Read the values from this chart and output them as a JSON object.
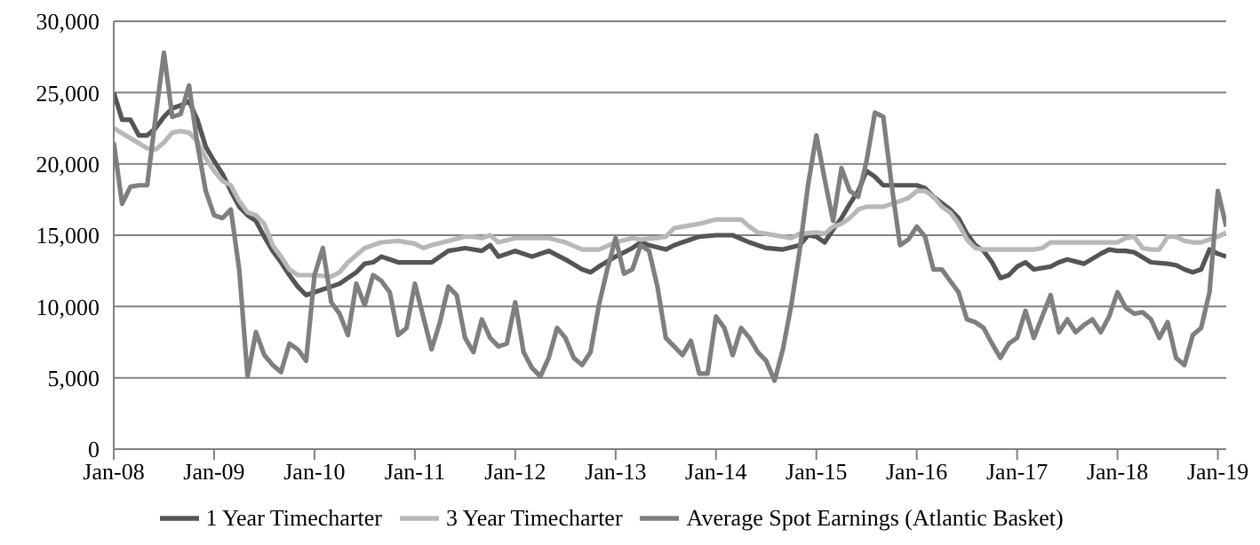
{
  "chart_data": {
    "type": "line",
    "xlim": [
      "2008-01",
      "2019-02"
    ],
    "ylim": [
      0,
      30000
    ],
    "yticks": [
      0,
      {
        "value": 5000,
        "label": "5,000"
      },
      {
        "value": 10000,
        "label": "10,000"
      },
      {
        "value": 15000,
        "label": "15,000"
      },
      {
        "value": 20000,
        "label": "20,000"
      },
      {
        "value": 25000,
        "label": "25,000"
      },
      {
        "value": 30000,
        "label": "30,000"
      }
    ],
    "xticks": [
      {
        "value": "2008-01",
        "label": "Jan-08"
      },
      {
        "value": "2009-01",
        "label": "Jan-09"
      },
      {
        "value": "2010-01",
        "label": "Jan-10"
      },
      {
        "value": "2011-01",
        "label": "Jan-11"
      },
      {
        "value": "2012-01",
        "label": "Jan-12"
      },
      {
        "value": "2013-01",
        "label": "Jan-13"
      },
      {
        "value": "2014-01",
        "label": "Jan-14"
      },
      {
        "value": "2015-01",
        "label": "Jan-15"
      },
      {
        "value": "2016-01",
        "label": "Jan-16"
      },
      {
        "value": "2017-01",
        "label": "Jan-17"
      },
      {
        "value": "2018-01",
        "label": "Jan-18"
      },
      {
        "value": "2019-01",
        "label": "Jan-19"
      }
    ],
    "grid": "y",
    "legend": "bottom",
    "marker": "none",
    "line_style": "solid",
    "series": [
      {
        "name": "1 Year Timecharter",
        "color": "#555555",
        "x": [
          "2008-01",
          "2008-02",
          "2008-03",
          "2008-04",
          "2008-05",
          "2008-06",
          "2008-07",
          "2008-08",
          "2008-09",
          "2008-10",
          "2008-11",
          "2008-12",
          "2009-01",
          "2009-02",
          "2009-03",
          "2009-04",
          "2009-05",
          "2009-06",
          "2009-07",
          "2009-08",
          "2009-09",
          "2009-10",
          "2009-11",
          "2009-12",
          "2010-01",
          "2010-02",
          "2010-03",
          "2010-04",
          "2010-05",
          "2010-06",
          "2010-07",
          "2010-08",
          "2010-09",
          "2010-10",
          "2010-11",
          "2011-01",
          "2011-03",
          "2011-05",
          "2011-07",
          "2011-09",
          "2011-10",
          "2011-11",
          "2012-01",
          "2012-03",
          "2012-05",
          "2012-07",
          "2012-09",
          "2012-10",
          "2012-11",
          "2013-01",
          "2013-03",
          "2013-04",
          "2013-05",
          "2013-07",
          "2013-08",
          "2013-09",
          "2013-10",
          "2013-11",
          "2014-01",
          "2014-03",
          "2014-05",
          "2014-07",
          "2014-09",
          "2014-11",
          "2014-12",
          "2015-01",
          "2015-02",
          "2015-03",
          "2015-04",
          "2015-05",
          "2015-06",
          "2015-07",
          "2015-08",
          "2015-09",
          "2015-11",
          "2016-01",
          "2016-02",
          "2016-03",
          "2016-05",
          "2016-06",
          "2016-07",
          "2016-08",
          "2016-09",
          "2016-10",
          "2016-11",
          "2016-12",
          "2017-01",
          "2017-02",
          "2017-03",
          "2017-05",
          "2017-06",
          "2017-07",
          "2017-09",
          "2017-11",
          "2017-12",
          "2018-01",
          "2018-02",
          "2018-03",
          "2018-05",
          "2018-07",
          "2018-08",
          "2018-09",
          "2018-10",
          "2018-11",
          "2018-12",
          "2019-01",
          "2019-02"
        ],
        "values": [
          25000,
          23100,
          23100,
          22000,
          22000,
          22500,
          23300,
          23900,
          24100,
          24400,
          23100,
          21200,
          20200,
          19300,
          18100,
          17000,
          16400,
          16000,
          14900,
          13900,
          13100,
          12200,
          11400,
          10800,
          11000,
          11200,
          11400,
          11600,
          12000,
          12400,
          13000,
          13100,
          13500,
          13300,
          13100,
          13100,
          13100,
          13900,
          14100,
          13900,
          14300,
          13500,
          13900,
          13500,
          13900,
          13300,
          12600,
          12400,
          12800,
          13500,
          14100,
          14500,
          14300,
          14000,
          14300,
          14500,
          14700,
          14900,
          15000,
          15000,
          14500,
          14100,
          14000,
          14300,
          15000,
          14900,
          14500,
          15400,
          16200,
          17200,
          18100,
          19500,
          19100,
          18500,
          18500,
          18500,
          18300,
          17700,
          16800,
          16200,
          15100,
          14300,
          13900,
          13100,
          12000,
          12200,
          12800,
          13100,
          12600,
          12800,
          13100,
          13300,
          13000,
          13700,
          14000,
          13900,
          13900,
          13800,
          13100,
          13000,
          12900,
          12600,
          12400,
          12600,
          14000,
          13700,
          13500
        ]
      },
      {
        "name": "3 Year Timecharter",
        "color": "#b8b8b8",
        "x": [
          "2008-01",
          "2008-03",
          "2008-05",
          "2008-06",
          "2008-07",
          "2008-08",
          "2008-09",
          "2008-10",
          "2008-11",
          "2008-12",
          "2009-01",
          "2009-02",
          "2009-03",
          "2009-04",
          "2009-05",
          "2009-06",
          "2009-07",
          "2009-08",
          "2009-09",
          "2009-10",
          "2009-11",
          "2010-01",
          "2010-03",
          "2010-04",
          "2010-05",
          "2010-07",
          "2010-09",
          "2010-11",
          "2011-01",
          "2011-02",
          "2011-03",
          "2011-05",
          "2011-07",
          "2011-08",
          "2011-09",
          "2011-10",
          "2011-11",
          "2012-01",
          "2012-03",
          "2012-05",
          "2012-07",
          "2012-09",
          "2012-11",
          "2013-01",
          "2013-03",
          "2013-04",
          "2013-06",
          "2013-07",
          "2013-08",
          "2013-09",
          "2013-11",
          "2014-01",
          "2014-03",
          "2014-04",
          "2014-05",
          "2014-06",
          "2014-07",
          "2014-09",
          "2014-10",
          "2014-11",
          "2015-01",
          "2015-02",
          "2015-03",
          "2015-04",
          "2015-05",
          "2015-06",
          "2015-07",
          "2015-09",
          "2015-10",
          "2015-11",
          "2015-12",
          "2016-01",
          "2016-02",
          "2016-03",
          "2016-04",
          "2016-05",
          "2016-06",
          "2016-07",
          "2016-08",
          "2016-09",
          "2016-11",
          "2017-01",
          "2017-03",
          "2017-04",
          "2017-05",
          "2017-07",
          "2017-09",
          "2017-11",
          "2018-01",
          "2018-02",
          "2018-03",
          "2018-04",
          "2018-05",
          "2018-06",
          "2018-07",
          "2018-08",
          "2018-09",
          "2018-10",
          "2018-11",
          "2018-12",
          "2019-01",
          "2019-02"
        ],
        "values": [
          22500,
          21800,
          21100,
          21000,
          21500,
          22200,
          22300,
          22200,
          21600,
          20400,
          19500,
          18800,
          18500,
          17400,
          16600,
          16400,
          15800,
          14300,
          13500,
          12600,
          12200,
          12200,
          12100,
          12400,
          13100,
          14100,
          14500,
          14600,
          14400,
          14100,
          14300,
          14600,
          14900,
          14900,
          14800,
          15000,
          14500,
          14800,
          14800,
          14800,
          14500,
          14000,
          14000,
          14500,
          14800,
          14700,
          14800,
          14900,
          15500,
          15600,
          15800,
          16100,
          16100,
          16100,
          15600,
          15200,
          15100,
          14900,
          14800,
          15100,
          15200,
          15100,
          15600,
          15800,
          16200,
          16800,
          17000,
          17000,
          17200,
          17400,
          17600,
          18100,
          18100,
          17700,
          17000,
          16600,
          15800,
          14700,
          14100,
          14000,
          14000,
          14000,
          14000,
          14100,
          14500,
          14500,
          14500,
          14500,
          14500,
          14800,
          14900,
          14100,
          14000,
          14000,
          14900,
          14900,
          14600,
          14500,
          14500,
          14700,
          14900,
          15200
        ]
      },
      {
        "name": "Average Spot Earnings (Atlantic Basket)",
        "color": "#7f7f7f",
        "x": [
          "2008-01",
          "2008-02",
          "2008-03",
          "2008-04",
          "2008-05",
          "2008-06",
          "2008-07",
          "2008-08",
          "2008-09",
          "2008-10",
          "2008-11",
          "2008-12",
          "2009-01",
          "2009-02",
          "2009-03",
          "2009-04",
          "2009-05",
          "2009-06",
          "2009-07",
          "2009-08",
          "2009-09",
          "2009-10",
          "2009-11",
          "2009-12",
          "2010-01",
          "2010-02",
          "2010-03",
          "2010-04",
          "2010-05",
          "2010-06",
          "2010-07",
          "2010-08",
          "2010-09",
          "2010-10",
          "2010-11",
          "2010-12",
          "2011-01",
          "2011-02",
          "2011-03",
          "2011-04",
          "2011-05",
          "2011-06",
          "2011-07",
          "2011-08",
          "2011-09",
          "2011-10",
          "2011-11",
          "2011-12",
          "2012-01",
          "2012-02",
          "2012-03",
          "2012-04",
          "2012-05",
          "2012-06",
          "2012-07",
          "2012-08",
          "2012-09",
          "2012-10",
          "2012-11",
          "2012-12",
          "2013-01",
          "2013-02",
          "2013-03",
          "2013-04",
          "2013-05",
          "2013-06",
          "2013-07",
          "2013-08",
          "2013-09",
          "2013-10",
          "2013-11",
          "2013-12",
          "2014-01",
          "2014-02",
          "2014-03",
          "2014-04",
          "2014-05",
          "2014-06",
          "2014-07",
          "2014-08",
          "2014-09",
          "2014-10",
          "2014-11",
          "2014-12",
          "2015-01",
          "2015-02",
          "2015-03",
          "2015-04",
          "2015-05",
          "2015-06",
          "2015-07",
          "2015-08",
          "2015-09",
          "2015-10",
          "2015-11",
          "2015-12",
          "2016-01",
          "2016-02",
          "2016-03",
          "2016-04",
          "2016-05",
          "2016-06",
          "2016-07",
          "2016-08",
          "2016-09",
          "2016-10",
          "2016-11",
          "2016-12",
          "2017-01",
          "2017-02",
          "2017-03",
          "2017-04",
          "2017-05",
          "2017-06",
          "2017-07",
          "2017-08",
          "2017-09",
          "2017-10",
          "2017-11",
          "2017-12",
          "2018-01",
          "2018-02",
          "2018-03",
          "2018-04",
          "2018-05",
          "2018-06",
          "2018-07",
          "2018-08",
          "2018-09",
          "2018-10",
          "2018-11",
          "2018-12",
          "2019-01",
          "2019-02"
        ],
        "values": [
          21500,
          17200,
          18400,
          18500,
          18500,
          23300,
          27800,
          23300,
          23500,
          25500,
          21400,
          18100,
          16400,
          16200,
          16800,
          12600,
          5100,
          8200,
          6600,
          5900,
          5400,
          7400,
          7000,
          6200,
          12200,
          14100,
          10300,
          9500,
          8000,
          11600,
          10100,
          12200,
          11800,
          11000,
          8000,
          8500,
          11600,
          9300,
          7000,
          8900,
          11400,
          10800,
          7800,
          6800,
          9100,
          7800,
          7200,
          7400,
          10300,
          6800,
          5700,
          5100,
          6400,
          8500,
          7800,
          6400,
          5900,
          6800,
          10100,
          12600,
          14800,
          12300,
          12600,
          14300,
          13900,
          11400,
          7800,
          7200,
          6600,
          7600,
          5300,
          5300,
          9300,
          8500,
          6600,
          8500,
          7800,
          6800,
          6200,
          4800,
          7000,
          10100,
          13900,
          18500,
          22000,
          18900,
          16000,
          19700,
          18100,
          17700,
          20200,
          23600,
          23300,
          18500,
          14300,
          14700,
          15600,
          14900,
          12600,
          12600,
          11800,
          11000,
          9100,
          8900,
          8500,
          7400,
          6400,
          7400,
          7800,
          9700,
          7800,
          9300,
          10800,
          8200,
          9100,
          8200,
          8700,
          9100,
          8200,
          9300,
          11000,
          9900,
          9500,
          9600,
          9100,
          7800,
          8900,
          6400,
          5900,
          8000,
          8500,
          11000,
          18100,
          15600
        ]
      }
    ]
  }
}
